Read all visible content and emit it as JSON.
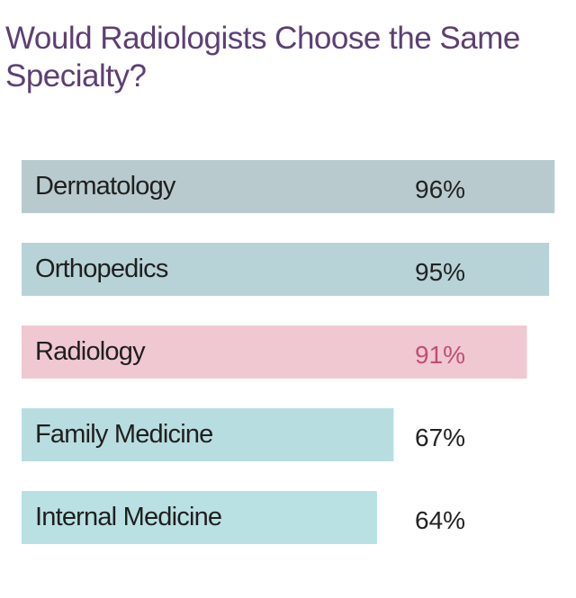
{
  "chart_data": {
    "type": "bar",
    "orientation": "horizontal",
    "title": "Would Radiologists Choose the Same Specialty?",
    "categories": [
      "Dermatology",
      "Orthopedics",
      "Radiology",
      "Family Medicine",
      "Internal Medicine"
    ],
    "values": [
      96,
      95,
      91,
      67,
      64
    ],
    "value_labels": [
      "96%",
      "95%",
      "91%",
      "67%",
      "64%"
    ],
    "bar_colors": [
      "#b8cace",
      "#b8d3d8",
      "#f0c8d2",
      "#b8dde0",
      "#b9e1e4"
    ],
    "value_label_colors": [
      "#222222",
      "#222222",
      "#c24e74",
      "#222222",
      "#222222"
    ],
    "highlight_category": "Radiology",
    "xlim": [
      0,
      100
    ],
    "grid": false,
    "legend": "none"
  }
}
